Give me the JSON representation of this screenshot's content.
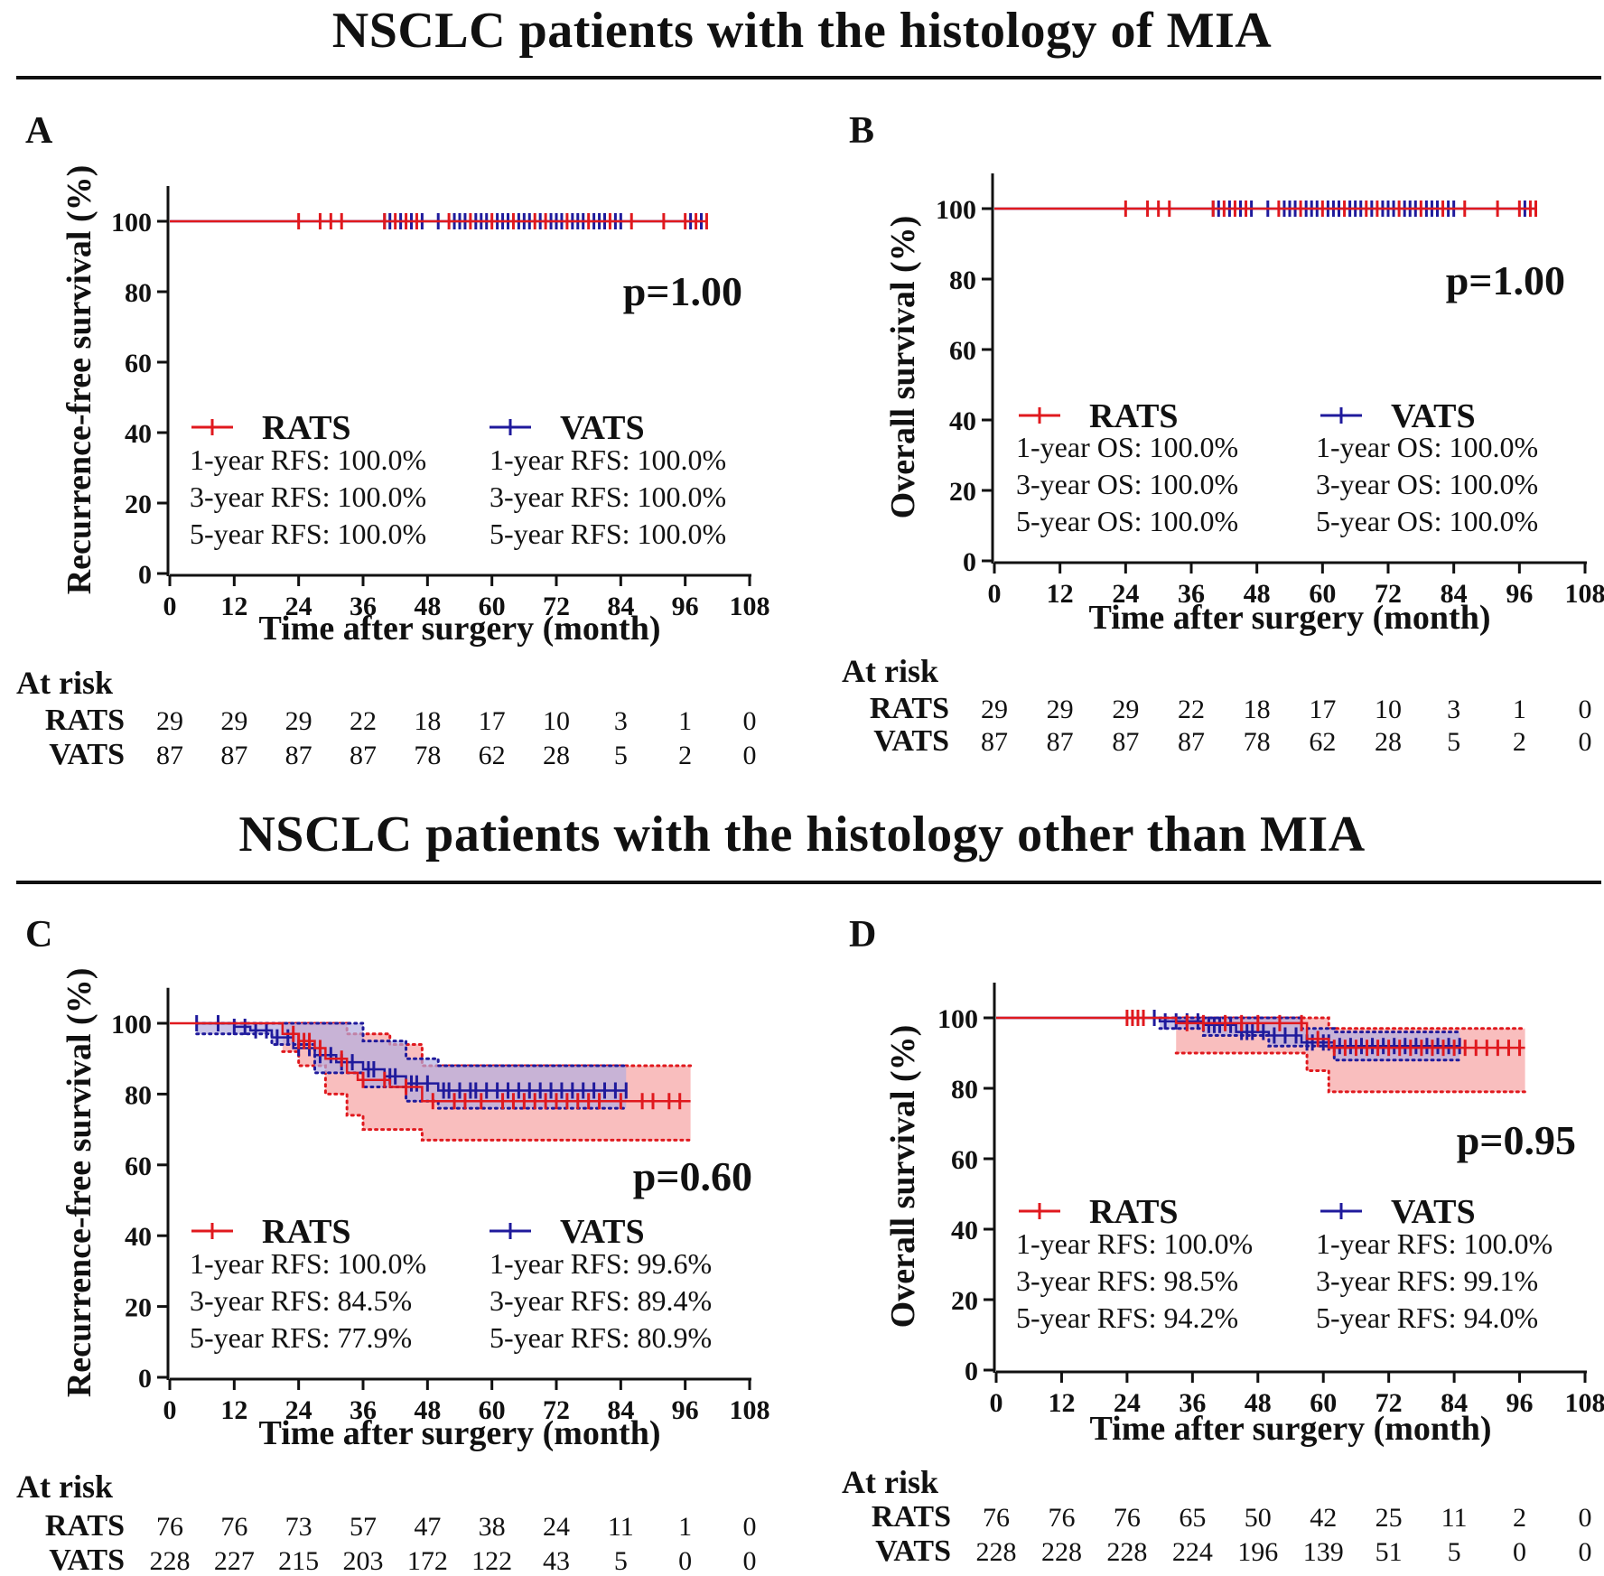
{
  "sections": [
    {
      "title": "NSCLC patients with the histology of MIA"
    },
    {
      "title": "NSCLC patients with the histology other than MIA"
    }
  ],
  "colors": {
    "rats": "#e0191e",
    "vats": "#1f1a9c",
    "rats_ci": "#f7a8a8",
    "vats_ci": "#b3aee0"
  },
  "chart_data": [
    {
      "panel": "A",
      "type": "line",
      "subtype": "kaplan-meier",
      "ylabel": "Recurrence-free survival (%)",
      "xlabel": "Time after surgery (month)",
      "xticks": [
        "0",
        "12",
        "24",
        "36",
        "48",
        "60",
        "72",
        "84",
        "96",
        "108"
      ],
      "yticks": [
        "0",
        "20",
        "40",
        "60",
        "80",
        "100"
      ],
      "xlim": [
        0,
        108
      ],
      "ylim": [
        0,
        110
      ],
      "p_value": "p=1.00",
      "series": [
        {
          "name": "RATS",
          "color": "rats",
          "steps": [
            [
              0,
              100
            ],
            [
              100,
              100
            ]
          ],
          "censors": [
            24,
            28,
            30,
            32,
            40,
            42,
            44,
            46,
            52,
            56,
            60,
            64,
            68,
            70,
            74,
            78,
            82,
            86,
            92,
            96,
            98,
            100
          ],
          "stats": [
            "1-year RFS: 100.0%",
            "3-year RFS: 100.0%",
            "5-year RFS: 100.0%"
          ]
        },
        {
          "name": "VATS",
          "color": "vats",
          "steps": [
            [
              0,
              100
            ],
            [
              99,
              100
            ]
          ],
          "censors": [
            40,
            41,
            43,
            45,
            47,
            50,
            53,
            54,
            55,
            57,
            58,
            59,
            61,
            62,
            63,
            65,
            66,
            67,
            69,
            71,
            72,
            73,
            75,
            76,
            77,
            79,
            80,
            81,
            83,
            84,
            97,
            99
          ],
          "stats": [
            "1-year RFS: 100.0%",
            "3-year RFS: 100.0%",
            "5-year RFS: 100.0%"
          ]
        }
      ],
      "at_risk": {
        "label": "At risk",
        "rows": [
          {
            "name": "RATS",
            "values": [
              "29",
              "29",
              "29",
              "22",
              "18",
              "17",
              "10",
              "3",
              "1",
              "0"
            ]
          },
          {
            "name": "VATS",
            "values": [
              "87",
              "87",
              "87",
              "87",
              "78",
              "62",
              "28",
              "5",
              "2",
              "0"
            ]
          }
        ]
      }
    },
    {
      "panel": "B",
      "type": "line",
      "subtype": "kaplan-meier",
      "ylabel": "Overall survival (%)",
      "xlabel": "Time after surgery (month)",
      "xticks": [
        "0",
        "12",
        "24",
        "36",
        "48",
        "60",
        "72",
        "84",
        "96",
        "108"
      ],
      "yticks": [
        "0",
        "20",
        "40",
        "60",
        "80",
        "100"
      ],
      "xlim": [
        0,
        108
      ],
      "ylim": [
        0,
        110
      ],
      "p_value": "p=1.00",
      "series": [
        {
          "name": "RATS",
          "color": "rats",
          "steps": [
            [
              0,
              100
            ],
            [
              99,
              100
            ]
          ],
          "censors": [
            24,
            28,
            30,
            32,
            40,
            42,
            44,
            46,
            52,
            56,
            60,
            64,
            68,
            70,
            74,
            78,
            82,
            86,
            92,
            96,
            98,
            99
          ],
          "stats": [
            "1-year OS: 100.0%",
            "3-year OS: 100.0%",
            "5-year OS: 100.0%"
          ]
        },
        {
          "name": "VATS",
          "color": "vats",
          "steps": [
            [
              0,
              100
            ],
            [
              99,
              100
            ]
          ],
          "censors": [
            40,
            41,
            43,
            45,
            47,
            50,
            53,
            54,
            55,
            57,
            58,
            59,
            61,
            62,
            63,
            65,
            66,
            67,
            69,
            71,
            72,
            73,
            75,
            76,
            77,
            79,
            80,
            81,
            83,
            84,
            97
          ],
          "stats": [
            "1-year OS: 100.0%",
            "3-year OS: 100.0%",
            "5-year OS: 100.0%"
          ]
        }
      ],
      "at_risk": {
        "label": "At risk",
        "rows": [
          {
            "name": "RATS",
            "values": [
              "29",
              "29",
              "29",
              "22",
              "18",
              "17",
              "10",
              "3",
              "1",
              "0"
            ]
          },
          {
            "name": "VATS",
            "values": [
              "87",
              "87",
              "87",
              "87",
              "78",
              "62",
              "28",
              "5",
              "2",
              "0"
            ]
          }
        ]
      }
    },
    {
      "panel": "C",
      "type": "line",
      "subtype": "kaplan-meier",
      "ylabel": "Recurrence-free survival (%)",
      "xlabel": "Time after surgery (month)",
      "xticks": [
        "0",
        "12",
        "24",
        "36",
        "48",
        "60",
        "72",
        "84",
        "96",
        "108"
      ],
      "yticks": [
        "0",
        "20",
        "40",
        "60",
        "80",
        "100"
      ],
      "xlim": [
        0,
        108
      ],
      "ylim": [
        0,
        110
      ],
      "p_value": "p=0.60",
      "series": [
        {
          "name": "RATS",
          "color": "rats",
          "steps": [
            [
              0,
              100
            ],
            [
              21,
              100
            ],
            [
              21,
              97
            ],
            [
              24,
              97
            ],
            [
              24,
              95
            ],
            [
              27,
              95
            ],
            [
              27,
              93
            ],
            [
              29,
              93
            ],
            [
              29,
              90
            ],
            [
              33,
              90
            ],
            [
              33,
              86
            ],
            [
              35,
              86
            ],
            [
              35,
              84
            ],
            [
              41,
              84
            ],
            [
              41,
              82
            ],
            [
              47,
              82
            ],
            [
              47,
              78
            ],
            [
              97,
              78
            ]
          ],
          "ci_upper": [
            [
              21,
              100
            ],
            [
              27,
              100
            ],
            [
              33,
              97
            ],
            [
              41,
              94
            ],
            [
              47,
              88
            ],
            [
              97,
              88
            ]
          ],
          "ci_lower": [
            [
              21,
              92
            ],
            [
              24,
              88
            ],
            [
              29,
              80
            ],
            [
              33,
              74
            ],
            [
              36,
              70
            ],
            [
              47,
              67
            ],
            [
              97,
              67
            ]
          ],
          "censors": [
            23,
            24,
            25,
            26,
            28,
            32,
            36,
            40,
            44,
            49,
            53,
            55,
            58,
            62,
            64,
            66,
            68,
            70,
            72,
            74,
            76,
            78,
            80,
            84,
            88,
            90,
            93,
            95
          ],
          "stats": [
            "1-year RFS: 100.0%",
            "3-year RFS: 84.5%",
            "5-year RFS: 77.9%"
          ]
        },
        {
          "name": "VATS",
          "color": "vats",
          "steps": [
            [
              5,
              100
            ],
            [
              12,
              100
            ],
            [
              12,
              99
            ],
            [
              15,
              99
            ],
            [
              15,
              98
            ],
            [
              19,
              98
            ],
            [
              19,
              96
            ],
            [
              23,
              96
            ],
            [
              23,
              93
            ],
            [
              27,
              93
            ],
            [
              27,
              91
            ],
            [
              31,
              91
            ],
            [
              31,
              89
            ],
            [
              36,
              89
            ],
            [
              36,
              87
            ],
            [
              40,
              87
            ],
            [
              40,
              85
            ],
            [
              44,
              85
            ],
            [
              44,
              83
            ],
            [
              50,
              83
            ],
            [
              50,
              81
            ],
            [
              85,
              81
            ]
          ],
          "ci_upper": [
            [
              5,
              100
            ],
            [
              23,
              100
            ],
            [
              36,
              95
            ],
            [
              44,
              90
            ],
            [
              50,
              88
            ],
            [
              85,
              88
            ]
          ],
          "ci_lower": [
            [
              5,
              97
            ],
            [
              19,
              94
            ],
            [
              27,
              86
            ],
            [
              36,
              82
            ],
            [
              44,
              78
            ],
            [
              50,
              76
            ],
            [
              85,
              76
            ]
          ],
          "censors": [
            5,
            9,
            12,
            14,
            16,
            18,
            20,
            22,
            24,
            26,
            28,
            30,
            32,
            34,
            37,
            38,
            41,
            42,
            45,
            46,
            48,
            51,
            52,
            54,
            56,
            57,
            59,
            61,
            63,
            65,
            67,
            69,
            71,
            73,
            75,
            77,
            79,
            81,
            83,
            85
          ],
          "stats": [
            "1-year RFS: 99.6%",
            "3-year RFS: 89.4%",
            "5-year RFS: 80.9%"
          ]
        }
      ],
      "at_risk": {
        "label": "At risk",
        "rows": [
          {
            "name": "RATS",
            "values": [
              "76",
              "76",
              "73",
              "57",
              "47",
              "38",
              "24",
              "11",
              "1",
              "0"
            ]
          },
          {
            "name": "VATS",
            "values": [
              "228",
              "227",
              "215",
              "203",
              "172",
              "122",
              "43",
              "5",
              "0",
              "0"
            ]
          }
        ]
      }
    },
    {
      "panel": "D",
      "type": "line",
      "subtype": "kaplan-meier",
      "ylabel": "Overall survival (%)",
      "xlabel": "Time after surgery (month)",
      "xticks": [
        "0",
        "12",
        "24",
        "36",
        "48",
        "60",
        "72",
        "84",
        "96",
        "108"
      ],
      "yticks": [
        "0",
        "20",
        "40",
        "60",
        "80",
        "100"
      ],
      "xlim": [
        0,
        108
      ],
      "ylim": [
        0,
        110
      ],
      "p_value": "p=0.95",
      "series": [
        {
          "name": "RATS",
          "color": "rats",
          "steps": [
            [
              0,
              100
            ],
            [
              33,
              100
            ],
            [
              33,
              98.5
            ],
            [
              57,
              98.5
            ],
            [
              57,
              94
            ],
            [
              61,
              94
            ],
            [
              61,
              91.5
            ],
            [
              97,
              91.5
            ]
          ],
          "ci_upper": [
            [
              33,
              100
            ],
            [
              57,
              100
            ],
            [
              61,
              97
            ],
            [
              97,
              97
            ]
          ],
          "ci_lower": [
            [
              33,
              90
            ],
            [
              57,
              90
            ],
            [
              57,
              85
            ],
            [
              61,
              79
            ],
            [
              97,
              79
            ]
          ],
          "censors": [
            24,
            25,
            26,
            27,
            35,
            38,
            42,
            45,
            48,
            52,
            56,
            59,
            62,
            64,
            66,
            68,
            70,
            72,
            74,
            76,
            78,
            80,
            82,
            84,
            86,
            88,
            90,
            92,
            94,
            96
          ],
          "stats": [
            "1-year RFS: 100.0%",
            "3-year RFS: 98.5%",
            "5-year RFS: 94.2%"
          ]
        },
        {
          "name": "VATS",
          "color": "vats",
          "steps": [
            [
              0,
              100
            ],
            [
              30,
              100
            ],
            [
              30,
              99
            ],
            [
              38,
              99
            ],
            [
              38,
              98
            ],
            [
              44,
              98
            ],
            [
              44,
              96
            ],
            [
              50,
              96
            ],
            [
              50,
              95
            ],
            [
              56,
              95
            ],
            [
              56,
              93
            ],
            [
              62,
              93
            ],
            [
              62,
              92
            ],
            [
              85,
              92
            ]
          ],
          "ci_upper": [
            [
              30,
              100
            ],
            [
              44,
              100
            ],
            [
              56,
              97
            ],
            [
              62,
              96
            ],
            [
              85,
              96
            ]
          ],
          "ci_lower": [
            [
              30,
              97
            ],
            [
              38,
              95
            ],
            [
              50,
              92
            ],
            [
              62,
              88
            ],
            [
              85,
              88
            ]
          ],
          "censors": [
            29,
            31,
            33,
            35,
            37,
            39,
            40,
            41,
            43,
            45,
            46,
            47,
            49,
            51,
            53,
            55,
            57,
            58,
            60,
            61,
            63,
            65,
            67,
            69,
            71,
            73,
            75,
            77,
            79,
            81,
            83,
            85
          ],
          "stats": [
            "1-year RFS: 100.0%",
            "3-year RFS: 99.1%",
            "5-year RFS: 94.0%"
          ]
        }
      ],
      "at_risk": {
        "label": "At risk",
        "rows": [
          {
            "name": "RATS",
            "values": [
              "76",
              "76",
              "76",
              "65",
              "50",
              "42",
              "25",
              "11",
              "2",
              "0"
            ]
          },
          {
            "name": "VATS",
            "values": [
              "228",
              "228",
              "228",
              "224",
              "196",
              "139",
              "51",
              "5",
              "0",
              "0"
            ]
          }
        ]
      }
    }
  ]
}
